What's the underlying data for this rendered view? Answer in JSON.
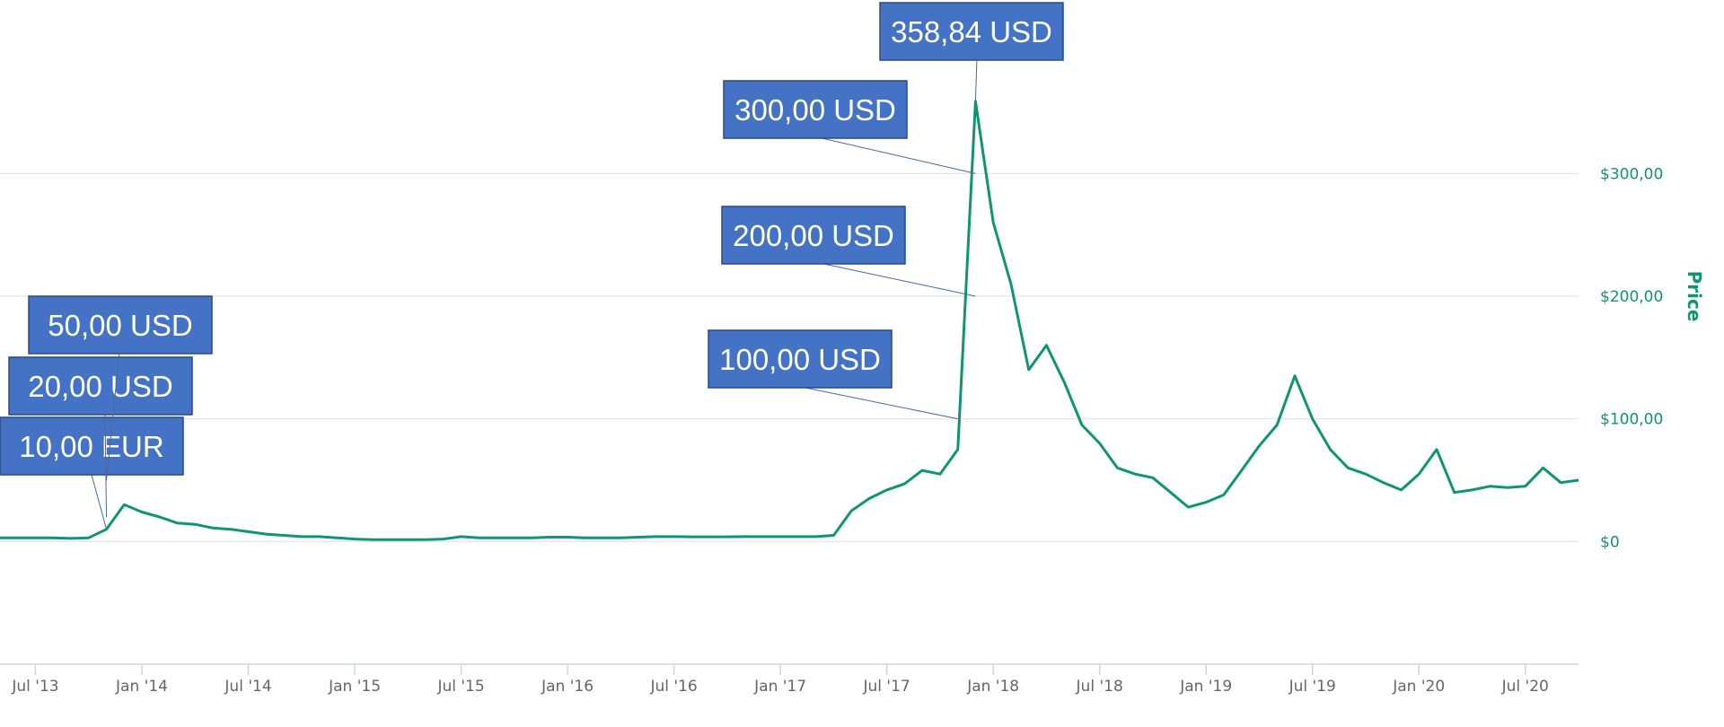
{
  "chart_data": {
    "type": "line",
    "y_label": "Price",
    "color": "#0e9670",
    "grid": true,
    "x": [
      "2013-05",
      "2013-06",
      "2013-07",
      "2013-08",
      "2013-09",
      "2013-10",
      "2013-11",
      "2013-12",
      "2014-01",
      "2014-02",
      "2014-03",
      "2014-04",
      "2014-05",
      "2014-06",
      "2014-07",
      "2014-08",
      "2014-09",
      "2014-10",
      "2014-11",
      "2014-12",
      "2015-01",
      "2015-02",
      "2015-03",
      "2015-04",
      "2015-05",
      "2015-06",
      "2015-07",
      "2015-08",
      "2015-09",
      "2015-10",
      "2015-11",
      "2015-12",
      "2016-01",
      "2016-02",
      "2016-03",
      "2016-04",
      "2016-05",
      "2016-06",
      "2016-07",
      "2016-08",
      "2016-09",
      "2016-10",
      "2016-11",
      "2016-12",
      "2017-01",
      "2017-02",
      "2017-03",
      "2017-04",
      "2017-05",
      "2017-06",
      "2017-07",
      "2017-08",
      "2017-09",
      "2017-10",
      "2017-11",
      "2017-12",
      "2018-01",
      "2018-02",
      "2018-03",
      "2018-04",
      "2018-05",
      "2018-06",
      "2018-07",
      "2018-08",
      "2018-09",
      "2018-10",
      "2018-11",
      "2018-12",
      "2019-01",
      "2019-02",
      "2019-03",
      "2019-04",
      "2019-05",
      "2019-06",
      "2019-07",
      "2019-08",
      "2019-09",
      "2019-10",
      "2019-11",
      "2019-12",
      "2020-01",
      "2020-02",
      "2020-03",
      "2020-04",
      "2020-05",
      "2020-06",
      "2020-07",
      "2020-08",
      "2020-09",
      "2020-10"
    ],
    "values": [
      3,
      3,
      3,
      3,
      2.5,
      3,
      10,
      30,
      24,
      20,
      15,
      14,
      11,
      10,
      8,
      6,
      5,
      4,
      4,
      3,
      2,
      1.5,
      1.5,
      1.5,
      1.5,
      2,
      4,
      3,
      3,
      3,
      3,
      3.5,
      3.5,
      3,
      3,
      3,
      3.5,
      4,
      4,
      3.8,
      3.8,
      3.8,
      4,
      4,
      4,
      4,
      4,
      5,
      25,
      35,
      42,
      47,
      58,
      55,
      75,
      358.84,
      260,
      210,
      140,
      160,
      130,
      95,
      80,
      60,
      55,
      52,
      40,
      28,
      32,
      38,
      58,
      78,
      95,
      135,
      100,
      75,
      60,
      55,
      48,
      42,
      55,
      75,
      40,
      42,
      45,
      44,
      45,
      60,
      48,
      50
    ],
    "xlim": [
      "2013-05",
      "2020-10"
    ],
    "xticks": [
      {
        "value": "2013-07",
        "label": "Jul '13"
      },
      {
        "value": "2014-01",
        "label": "Jan '14"
      },
      {
        "value": "2014-07",
        "label": "Jul '14"
      },
      {
        "value": "2015-01",
        "label": "Jan '15"
      },
      {
        "value": "2015-07",
        "label": "Jul '15"
      },
      {
        "value": "2016-01",
        "label": "Jan '16"
      },
      {
        "value": "2016-07",
        "label": "Jul '16"
      },
      {
        "value": "2017-01",
        "label": "Jan '17"
      },
      {
        "value": "2017-07",
        "label": "Jul '17"
      },
      {
        "value": "2018-01",
        "label": "Jan '18"
      },
      {
        "value": "2018-07",
        "label": "Jul '18"
      },
      {
        "value": "2019-01",
        "label": "Jan '19"
      },
      {
        "value": "2019-07",
        "label": "Jul '19"
      },
      {
        "value": "2020-01",
        "label": "Jan '20"
      },
      {
        "value": "2020-07",
        "label": "Jul '20"
      }
    ],
    "ylim": [
      -100,
      440
    ],
    "yticks": [
      {
        "value": 0,
        "label": "$0"
      },
      {
        "value": 100,
        "label": "$100,00"
      },
      {
        "value": 200,
        "label": "$200,00"
      },
      {
        "value": 300,
        "label": "$300,00"
      }
    ],
    "annotations": [
      {
        "label": "10,00 EUR",
        "x": "2013-11",
        "value": 10
      },
      {
        "label": "20,00 USD",
        "x": "2013-11",
        "value": 20
      },
      {
        "label": "50,00 USD",
        "x": "2013-11",
        "value": 50
      },
      {
        "label": "100,00 USD",
        "x": "2017-11",
        "value": 100
      },
      {
        "label": "200,00 USD",
        "x": "2017-12",
        "value": 200
      },
      {
        "label": "300,00 USD",
        "x": "2017-12",
        "value": 300
      },
      {
        "label": "358,84 USD",
        "x": "2017-12",
        "value": 358.84
      }
    ]
  }
}
